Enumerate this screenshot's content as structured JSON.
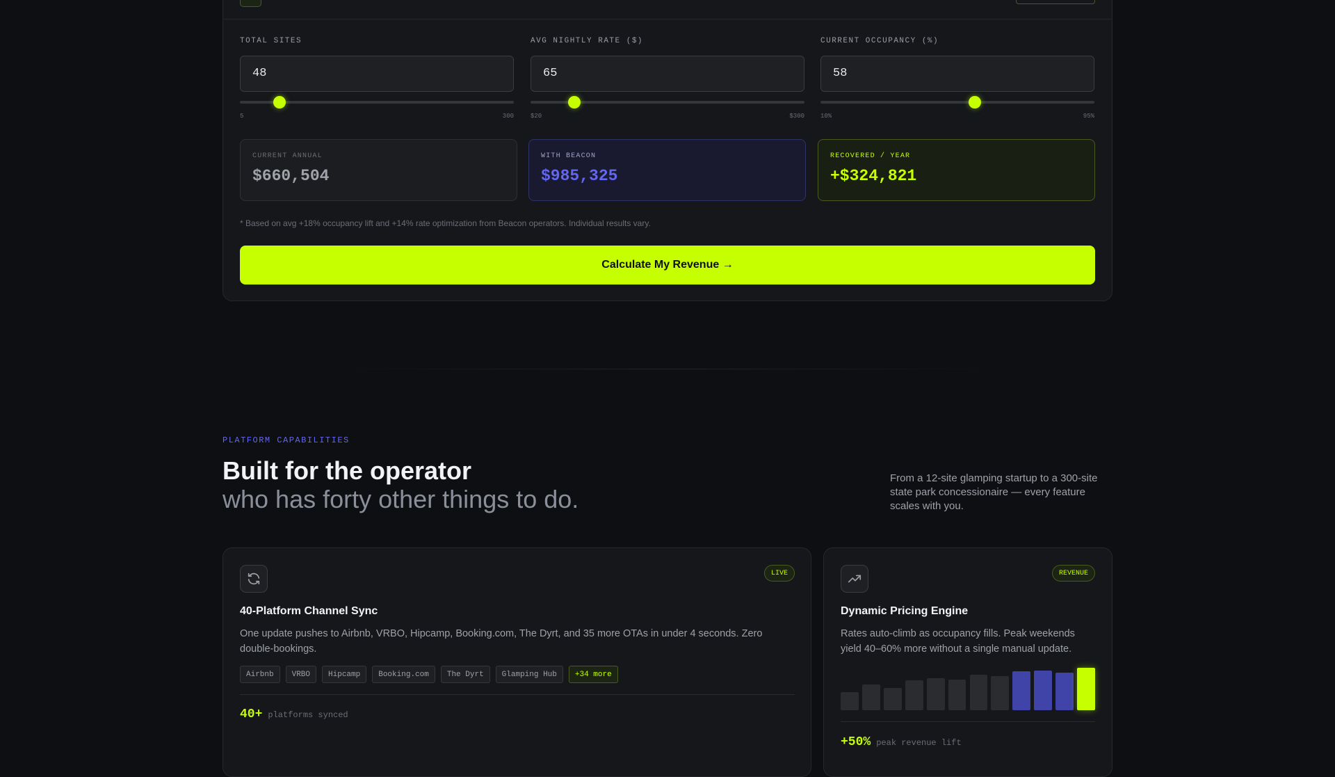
{
  "calculator": {
    "inputs": [
      {
        "label": "TOTAL SITES",
        "value": 48,
        "min": {
          "value": 5,
          "label": "5"
        },
        "max": {
          "value": 300,
          "label": "300"
        }
      },
      {
        "label": "AVG NIGHTLY RATE ($)",
        "value": 65,
        "min": {
          "value": 20,
          "label": "$20"
        },
        "max": {
          "value": 300,
          "label": "$300"
        }
      },
      {
        "label": "CURRENT OCCUPANCY (%)",
        "value": 58,
        "min": {
          "value": 10,
          "label": "10%"
        },
        "max": {
          "value": 95,
          "label": "95%"
        }
      }
    ],
    "results": [
      {
        "label": "CURRENT ANNUAL",
        "value": "$660,504"
      },
      {
        "label": "WITH BEACON",
        "value": "$985,325"
      },
      {
        "label": "RECOVERED / YEAR",
        "value": "+$324,821"
      }
    ],
    "footnote": "* Based on avg +18% occupancy lift and +14% rate optimization from Beacon operators. Individual results vary.",
    "button": "Calculate My Revenue →"
  },
  "capabilities": {
    "eyebrow": "PLATFORM CAPABILITIES",
    "heading": "Built for the operator",
    "subheading": "who has forty other things to do.",
    "description": "From a 12-site glamping startup to a 300-site state park concessionaire — every feature scales with you."
  },
  "features": [
    {
      "title": "40-Platform Channel Sync",
      "badge": "LIVE",
      "description": "One update pushes to Airbnb, VRBO, Hipcamp, Booking.com, The Dyrt, and 35 more OTAs in under 4 seconds. Zero double-bookings.",
      "tags": [
        "Airbnb",
        "VRBO",
        "Hipcamp",
        "Booking.com",
        "The Dyrt",
        "Glamping Hub",
        "+34 more"
      ],
      "stat": "40+",
      "stat_label": "platforms synced"
    },
    {
      "title": "Dynamic Pricing Engine",
      "badge": "REVENUE",
      "description": "Rates auto-climb as occupancy fills. Peak weekends yield 40–60% more without a single manual update.",
      "bars": {
        "values": [
          42,
          60,
          52,
          70,
          76,
          72,
          84,
          80,
          92,
          94,
          88,
          100
        ],
        "colors": [
          "#2a2c30",
          "#2a2c30",
          "#2a2c30",
          "#2a2c30",
          "#2a2c30",
          "#2a2c30",
          "#2a2c30",
          "#2a2c30",
          "#4043a8",
          "#4043a8",
          "#4043a8",
          "#c6ff00"
        ]
      },
      "stat": "+50%",
      "stat_label": "peak revenue lift"
    }
  ]
}
